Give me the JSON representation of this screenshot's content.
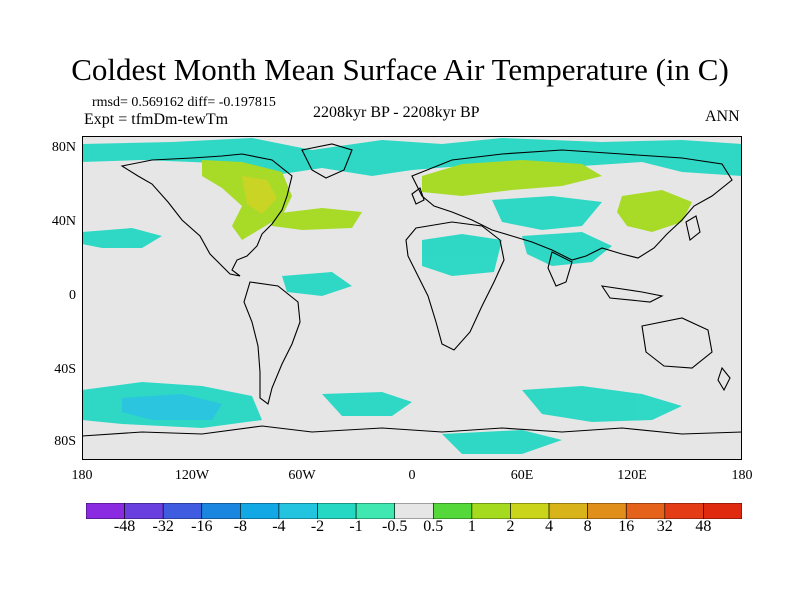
{
  "title": "Coldest Month Mean Surface Air Temperature (in C)",
  "stats": "rmsd= 0.569162 diff= -0.197815",
  "experiment": "Expt = tfmDm-tewTm",
  "period": "2208kyr BP - 2208kyr BP",
  "season": "ANN",
  "lat_labels": [
    "80N",
    "40N",
    "0",
    "40S",
    "80S"
  ],
  "lon_labels": [
    "180",
    "120W",
    "60W",
    "0",
    "60E",
    "120E",
    "180"
  ],
  "colorbar": {
    "labels": [
      "-48",
      "-32",
      "-16",
      "-8",
      "-4",
      "-2",
      "-1",
      "-0.5",
      "0.5",
      "1",
      "2",
      "4",
      "8",
      "16",
      "32",
      "48"
    ],
    "colors": [
      "#8a2be2",
      "#6a3fe0",
      "#3f5ce0",
      "#1a86e0",
      "#12a8e6",
      "#22c4df",
      "#25d8c4",
      "#3fe8b0",
      "#e6e6e6",
      "#55d93a",
      "#a4db1e",
      "#c9d41a",
      "#d8b41a",
      "#e08f1a",
      "#e46219",
      "#e43d16",
      "#e02a10"
    ]
  },
  "colors": {
    "neutral": "#e6e6e6",
    "coast": "#000000"
  }
}
